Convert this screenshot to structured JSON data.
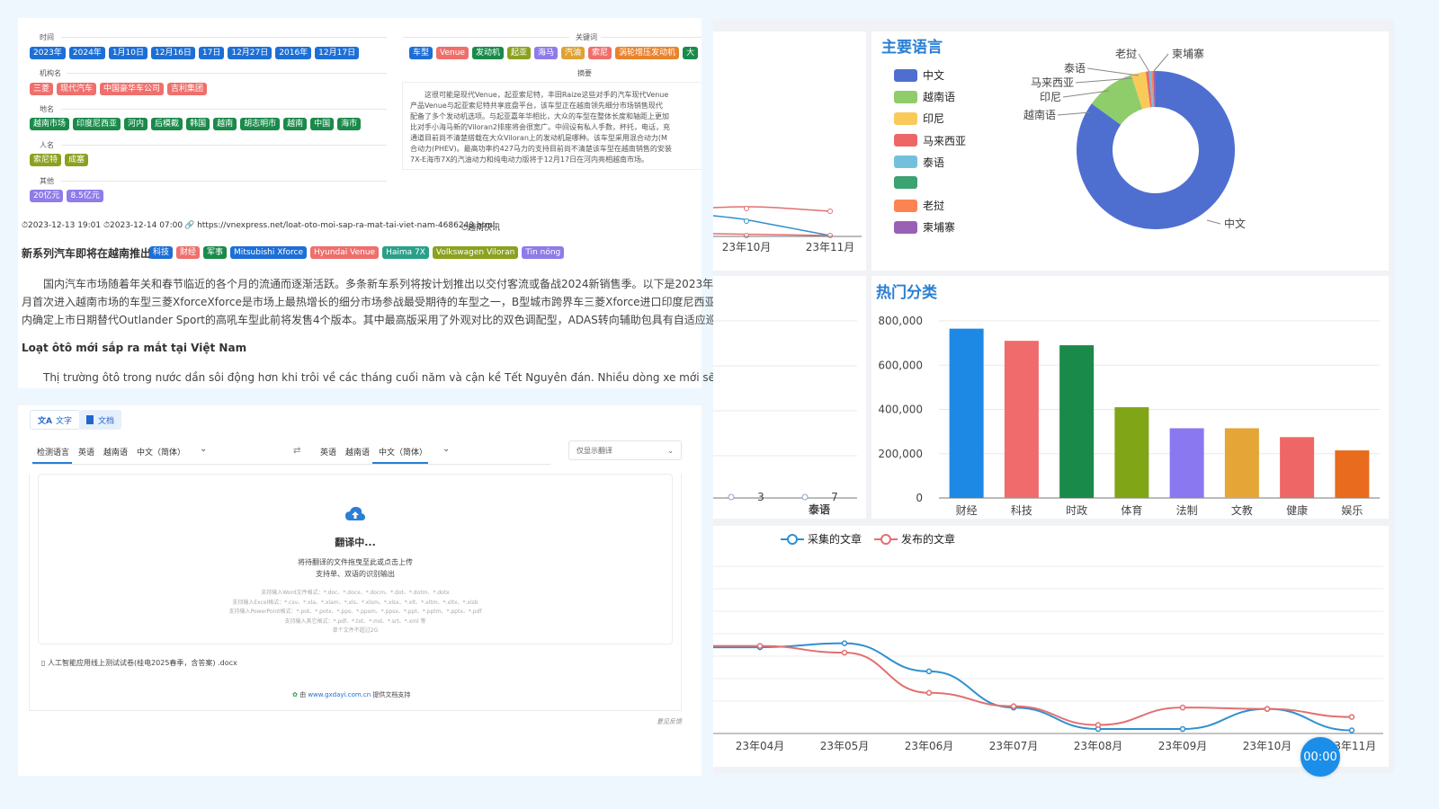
{
  "tags": {
    "time_label": "时间",
    "time": [
      "2023年",
      "2024年",
      "1月10日",
      "12月16日",
      "17日",
      "12月27日",
      "2016年",
      "12月17日"
    ],
    "org_label": "机构名",
    "org": [
      "三菱",
      "现代汽车",
      "中国豪华车公司",
      "吉利集团"
    ],
    "place_label": "地名",
    "place": [
      "越南市场",
      "印度尼西亚",
      "河内",
      "后模截",
      "韩国",
      "越南",
      "胡志明市",
      "越南",
      "中国",
      "海市"
    ],
    "person_label": "人名",
    "person": [
      "索尼特",
      "成塞"
    ],
    "other_label": "其他",
    "other": [
      "20亿元",
      "8.5亿元"
    ],
    "keywords_label": "关键词",
    "keywords": [
      "车型",
      "Venue",
      "发动机",
      "起亚",
      "海马",
      "汽油",
      "索尼",
      "涡轮增压发动机",
      "大"
    ],
    "summary_label": "摘要",
    "summary_lines": [
      "这很可能是现代Venue，起亚索尼特，丰田Raize这些对手的汽车现代Venue",
      "产品Venue与起亚索尼特共享底盘平台，该车型正在越南领先细分市场销售现代",
      "配备了多个发动机选项。与起亚嘉年华相比，大众的车型在整体长度和轴距上更加",
      "比对手小海马新的Viloran2排座将会很宽广。中间设有私人手数，杯托，电话，充",
      "通道目前尚不清楚搭载在大众Viloran上的发动机是哪种。该车型采用混合动力(M",
      "合动力(PHEV)。最高功率约427马力的支持目前尚不清楚该车型在越南销售的安装",
      "7X-E海市7X的汽油动力和纯电动力版将于12月17日在河内亮相越南市场。"
    ]
  },
  "meta": {
    "created": "2023-12-13 19:01",
    "published": "2023-12-14 07:00",
    "url": "https://vnexpress.net/loat-oto-moi-sap-ra-mat-tai-viet-nam-4686243.html",
    "source": "越南快讯"
  },
  "article": {
    "title": "新系列汽车即将在越南推出",
    "title_tags": [
      "科技",
      "财经",
      "军事",
      "Mitsubishi Xforce",
      "Hyundai Venue",
      "Haima 7X",
      "Volkswagen Viloran",
      "Tin nóng"
    ],
    "p1": "国内汽车市场随着年关和春节临近的各个月的流通而逐渐活跃。多条新车系列将按计划推出以交付客流或备战2024新销售季。以下是2023年剩余部",
    "p2": "月首次进入越南市场的车型三菱XforceXforce是市场上最热增长的细分市场参战最受期待的车型之一，B型城市跨界车三菱Xforce进口印度尼西亚，并",
    "p3": "内确定上市日期替代Outlander Sport的高吼车型此前将发售4个版本。其中最高版采用了外观对比的双色调配型，ADAS转向辅助包具有自适应巡航控",
    "subtitle": "Loạt ôtô mới sắp ra mắt tại Việt Nam",
    "p4": "Thị trường ôtô trong nước dần sôi động hơn khi trôi về các tháng cuối năm và cận kề Tết Nguyên đán. Nhiều dòng xe mới sẽ"
  },
  "translator": {
    "tab_text": "文字",
    "tab_doc": "文档",
    "src_langs": [
      "检测语言",
      "英语",
      "越南语",
      "中文（简体）"
    ],
    "tgt_langs": [
      "英语",
      "越南语",
      "中文（简体）"
    ],
    "mode_select": "仅显示翻译",
    "status": "翻译中...",
    "hint1": "将待翻译的文件拖曳至此或点击上传",
    "hint2": "支持单、双语的识别输出",
    "formats": [
      "支持输入Word文件格式：*.doc、*.docx、*.docm、*.dot、*.dotm、*.dotx",
      "支持输入Excel格式：*.csv、*.xla、*.xlam、*.xls、*.xlsm、*.xlsx、*.xlt、*.xltm、*.xltx、*.xlsb",
      "支持输入PowerPoint格式：*.pot、*.potx、*.pps、*.ppsm、*.ppsx、*.ppt、*.pptm、*.pptx、*.pdf",
      "支持输入其它格式：*.pdf、*.txt、*.md、*.srt、*.xml 等",
      "单个文件不超过2G"
    ],
    "file_name": "人工智能应用线上测试试卷(桂电2025春季，含答案) .docx",
    "footer_prefix": "由",
    "footer_link": "www.gxdayi.com.cn",
    "footer_suffix": "提供文档支持",
    "feedback": "意见反馈"
  },
  "charts": {
    "lang_title": "主要语言",
    "lang_legend": [
      "中文",
      "越南语",
      "印尼",
      "马来西亚",
      "泰语",
      "",
      "老挝",
      "柬埔寨"
    ],
    "lang_colors": [
      "#4e6fd0",
      "#8fcd6b",
      "#f9c95a",
      "#ee6666",
      "#73c0de",
      "#3ba272",
      "#fc8452",
      "#9a60b4"
    ],
    "category_title": "热门分类",
    "left_small": {
      "x_labels": [
        "23年10月",
        "23年11月"
      ],
      "x2_labels": [
        "3",
        "7"
      ],
      "x2_title": "泰语"
    },
    "trend_legend": [
      "采集的文章",
      "发布的文章"
    ],
    "timer": "00:00"
  },
  "chart_data": [
    {
      "type": "pie",
      "title": "主要语言",
      "categories": [
        "中文",
        "越南语",
        "印尼",
        "马来西亚",
        "泰语",
        "老挝",
        "柬埔寨"
      ],
      "values": [
        85,
        10,
        3,
        0.6,
        0.5,
        0.4,
        0.5
      ]
    },
    {
      "type": "bar",
      "title": "热门分类",
      "categories": [
        "财经",
        "科技",
        "时政",
        "体育",
        "法制",
        "文教",
        "健康",
        "娱乐"
      ],
      "values": [
        765000,
        710000,
        690000,
        410000,
        315000,
        315000,
        275000,
        215000
      ],
      "colors": [
        "#1e88e5",
        "#f06b6b",
        "#1a8a4a",
        "#80a618",
        "#8a78f0",
        "#e6a537",
        "#ee6666",
        "#e86b1e"
      ],
      "ylim": [
        0,
        800000
      ],
      "yticks": [
        "0",
        "200,000",
        "400,000",
        "600,000",
        "800,000"
      ]
    },
    {
      "type": "line",
      "x": [
        "23年04月",
        "23年05月",
        "23年06月",
        "23年07月",
        "23年08月",
        "23年09月",
        "23年10月",
        "23年11月"
      ],
      "series": [
        {
          "name": "采集的文章",
          "values": [
            0.63,
            0.66,
            0.45,
            0.18,
            0.02,
            0.02,
            0.17,
            0.01
          ]
        },
        {
          "name": "发布的文章",
          "values": [
            0.64,
            0.59,
            0.29,
            0.19,
            0.05,
            0.18,
            0.17,
            0.11
          ]
        }
      ]
    }
  ]
}
